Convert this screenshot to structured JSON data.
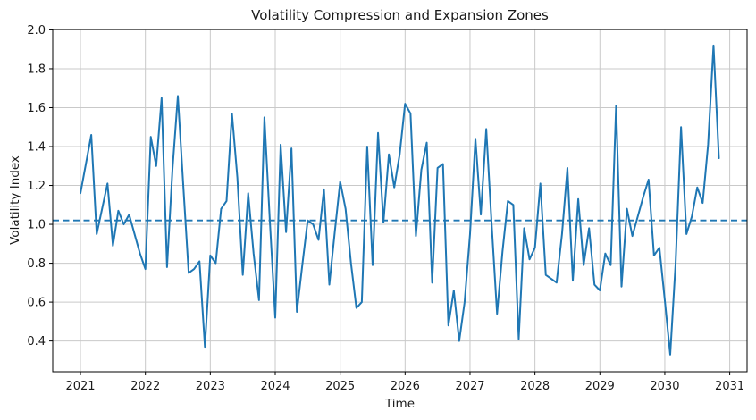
{
  "chart_data": {
    "type": "line",
    "title": "Volatility Compression and Expansion Zones",
    "xlabel": "Time",
    "ylabel": "Volatility Index",
    "x_start_year": 2021,
    "points_per_year": 12,
    "values": [
      1.16,
      1.31,
      1.46,
      0.95,
      1.08,
      1.21,
      0.89,
      1.07,
      1.0,
      1.05,
      0.95,
      0.85,
      0.77,
      1.45,
      1.3,
      1.65,
      0.78,
      1.28,
      1.66,
      1.2,
      0.75,
      0.77,
      0.81,
      0.37,
      0.84,
      0.8,
      1.08,
      1.12,
      1.57,
      1.24,
      0.74,
      1.16,
      0.85,
      0.61,
      1.55,
      1.02,
      0.52,
      1.41,
      0.96,
      1.39,
      0.55,
      0.79,
      1.02,
      1.0,
      0.92,
      1.18,
      0.69,
      0.96,
      1.22,
      1.08,
      0.8,
      0.57,
      0.6,
      1.4,
      0.79,
      1.47,
      1.01,
      1.36,
      1.19,
      1.36,
      1.62,
      1.57,
      0.94,
      1.28,
      1.42,
      0.7,
      1.29,
      1.31,
      0.48,
      0.66,
      0.4,
      0.6,
      0.95,
      1.44,
      1.05,
      1.49,
      1.0,
      0.54,
      0.86,
      1.12,
      1.1,
      0.41,
      0.98,
      0.82,
      0.88,
      1.21,
      0.74,
      0.72,
      0.7,
      0.95,
      1.29,
      0.71,
      1.13,
      0.79,
      0.98,
      0.69,
      0.66,
      0.85,
      0.79,
      1.61,
      0.68,
      1.08,
      0.94,
      1.04,
      1.14,
      1.23,
      0.84,
      0.88,
      0.61,
      0.33,
      0.8,
      1.5,
      0.95,
      1.04,
      1.19,
      1.11,
      1.41,
      1.92,
      1.34
    ],
    "mean_line": 1.02,
    "x_ticks": [
      2021,
      2022,
      2023,
      2024,
      2025,
      2026,
      2027,
      2028,
      2029,
      2030,
      2031
    ],
    "y_ticks": [
      0.4,
      0.6,
      0.8,
      1.0,
      1.2,
      1.4,
      1.6,
      1.8,
      2.0
    ],
    "xlim": [
      2020.573,
      2031.267
    ],
    "ylim": [
      0.242,
      2.002
    ],
    "grid": true,
    "legend": "none",
    "line_color": "#1f77b4",
    "mean_line_color": "#1f77b4",
    "grid_color": "#c9c9c9",
    "spine_color": "#000000",
    "text_color": "#1a1a1a",
    "background": "#ffffff"
  }
}
